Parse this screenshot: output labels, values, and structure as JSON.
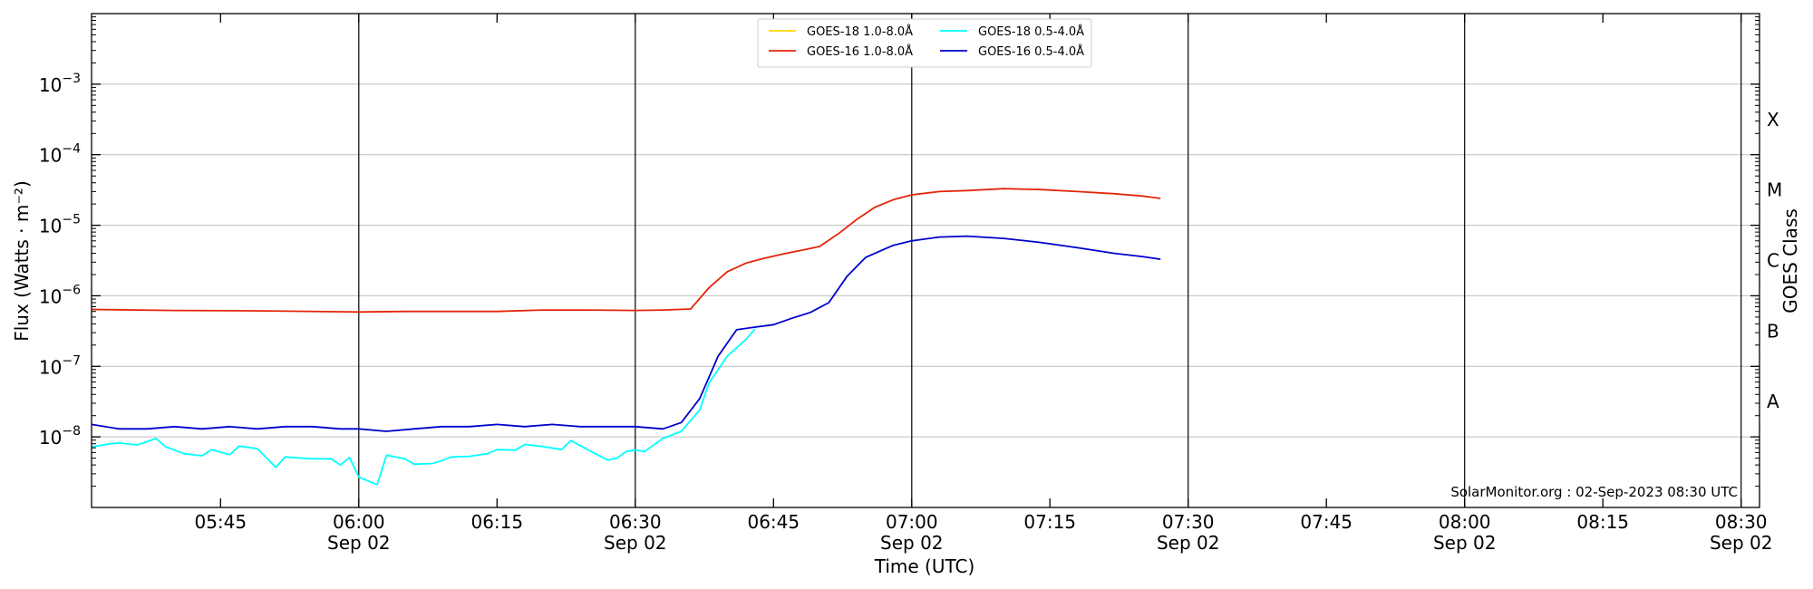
{
  "chart_data": {
    "type": "line",
    "xlabel": "Time (UTC)",
    "ylabel": "Flux (Watts · m⁻²)",
    "y2label": "GOES Class",
    "yscale": "log",
    "ylim": [
      1e-09,
      0.01
    ],
    "xlim": [
      "05:31",
      "08:32"
    ],
    "grid": "horizontal at decades",
    "legend_position": "top-center",
    "watermark": "SolarMonitor.org : 02-Sep-2023 08:30 UTC",
    "x_ticks": [
      {
        "time": "05:45",
        "label": "05:45",
        "date": ""
      },
      {
        "time": "06:00",
        "label": "06:00",
        "date": "Sep 02"
      },
      {
        "time": "06:15",
        "label": "06:15",
        "date": ""
      },
      {
        "time": "06:30",
        "label": "06:30",
        "date": "Sep 02"
      },
      {
        "time": "06:45",
        "label": "06:45",
        "date": ""
      },
      {
        "time": "07:00",
        "label": "07:00",
        "date": "Sep 02"
      },
      {
        "time": "07:15",
        "label": "07:15",
        "date": ""
      },
      {
        "time": "07:30",
        "label": "07:30",
        "date": "Sep 02"
      },
      {
        "time": "07:45",
        "label": "07:45",
        "date": ""
      },
      {
        "time": "08:00",
        "label": "08:00",
        "date": "Sep 02"
      },
      {
        "time": "08:15",
        "label": "08:15",
        "date": ""
      },
      {
        "time": "08:30",
        "label": "08:30",
        "date": "Sep 02"
      }
    ],
    "vertical_lines": [
      "06:00",
      "06:30",
      "07:00",
      "07:30",
      "08:00",
      "08:30"
    ],
    "y_ticks": [
      {
        "value": 1e-08,
        "base": "10",
        "exp": "−8"
      },
      {
        "value": 1e-07,
        "base": "10",
        "exp": "−7"
      },
      {
        "value": 1e-06,
        "base": "10",
        "exp": "−6"
      },
      {
        "value": 1e-05,
        "base": "10",
        "exp": "−5"
      },
      {
        "value": 0.0001,
        "base": "10",
        "exp": "−4"
      },
      {
        "value": 0.001,
        "base": "10",
        "exp": "−3"
      }
    ],
    "goes_classes": [
      {
        "label": "A",
        "value": 3.16e-08
      },
      {
        "label": "B",
        "value": 3.16e-07
      },
      {
        "label": "C",
        "value": 3.16e-06
      },
      {
        "label": "M",
        "value": 3.16e-05
      },
      {
        "label": "X",
        "value": 0.000316
      }
    ],
    "series": [
      {
        "name": "GOES-18 1.0-8.0Å",
        "color": "#ffd700",
        "x": [],
        "y": []
      },
      {
        "name": "GOES-18 0.5-4.0Å",
        "color": "#00ffff",
        "x": [
          "05:31",
          "05:33",
          "05:34",
          "05:36",
          "05:38",
          "05:39",
          "05:41",
          "05:43",
          "05:44",
          "05:46",
          "05:47",
          "05:49",
          "05:51",
          "05:52",
          "05:54",
          "05:55",
          "05:57",
          "05:58",
          "05:59",
          "06:00",
          "06:02",
          "06:03",
          "06:05",
          "06:06",
          "06:08",
          "06:09",
          "06:10",
          "06:12",
          "06:14",
          "06:15",
          "06:17",
          "06:18",
          "06:20",
          "06:22",
          "06:23",
          "06:25",
          "06:27",
          "06:28",
          "06:29",
          "06:30",
          "06:31",
          "06:33",
          "06:35",
          "06:37",
          "06:38",
          "06:40",
          "06:42",
          "06:43"
        ],
        "y": [
          7.2e-09,
          8e-09,
          8.2e-09,
          7.7e-09,
          9.5e-09,
          7.3e-09,
          5.8e-09,
          5.4e-09,
          6.6e-09,
          5.6e-09,
          7.4e-09,
          6.8e-09,
          3.7e-09,
          5.2e-09,
          5e-09,
          4.9e-09,
          4.9e-09,
          4e-09,
          5.1e-09,
          2.7e-09,
          2.1e-09,
          5.5e-09,
          4.9e-09,
          4.1e-09,
          4.2e-09,
          4.6e-09,
          5.2e-09,
          5.3e-09,
          5.8e-09,
          6.6e-09,
          6.5e-09,
          7.8e-09,
          7.3e-09,
          6.6e-09,
          8.9e-09,
          6.4e-09,
          4.7e-09,
          5e-09,
          6.2e-09,
          6.5e-09,
          6.2e-09,
          9.5e-09,
          1.2e-08,
          2.4e-08,
          5.8e-08,
          1.4e-07,
          2.4e-07,
          3.4e-07
        ]
      },
      {
        "name": "GOES-16 1.0-8.0Å",
        "color": "#e3260a",
        "x": [
          "05:31",
          "05:40",
          "05:50",
          "06:00",
          "06:05",
          "06:10",
          "06:15",
          "06:20",
          "06:25",
          "06:30",
          "06:33",
          "06:36",
          "06:38",
          "06:40",
          "06:42",
          "06:44",
          "06:46",
          "06:48",
          "06:50",
          "06:52",
          "06:54",
          "06:56",
          "06:58",
          "07:00",
          "07:03",
          "07:06",
          "07:10",
          "07:14",
          "07:18",
          "07:22",
          "07:25",
          "07:27"
        ],
        "y": [
          6.4e-07,
          6.2e-07,
          6.1e-07,
          5.9e-07,
          6e-07,
          6e-07,
          6e-07,
          6.3e-07,
          6.3e-07,
          6.2e-07,
          6.3e-07,
          6.5e-07,
          1.3e-06,
          2.2e-06,
          2.9e-06,
          3.4e-06,
          3.9e-06,
          4.4e-06,
          5e-06,
          7.5e-06,
          1.2e-05,
          1.8e-05,
          2.3e-05,
          2.7e-05,
          3e-05,
          3.1e-05,
          3.3e-05,
          3.2e-05,
          3e-05,
          2.8e-05,
          2.6e-05,
          2.4e-05
        ]
      },
      {
        "name": "GOES-16 0.5-4.0Å",
        "color": "#0000cd",
        "x": [
          "05:31",
          "05:34",
          "05:37",
          "05:40",
          "05:43",
          "05:46",
          "05:49",
          "05:52",
          "05:55",
          "05:58",
          "06:00",
          "06:03",
          "06:06",
          "06:09",
          "06:12",
          "06:15",
          "06:18",
          "06:21",
          "06:24",
          "06:27",
          "06:30",
          "06:33",
          "06:35",
          "06:37",
          "06:39",
          "06:41",
          "06:43",
          "06:45",
          "06:47",
          "06:49",
          "06:51",
          "06:53",
          "06:55",
          "06:58",
          "07:00",
          "07:03",
          "07:06",
          "07:10",
          "07:14",
          "07:18",
          "07:22",
          "07:25",
          "07:27"
        ],
        "y": [
          1.5e-08,
          1.3e-08,
          1.3e-08,
          1.4e-08,
          1.3e-08,
          1.4e-08,
          1.3e-08,
          1.4e-08,
          1.4e-08,
          1.3e-08,
          1.3e-08,
          1.2e-08,
          1.3e-08,
          1.4e-08,
          1.4e-08,
          1.5e-08,
          1.4e-08,
          1.5e-08,
          1.4e-08,
          1.4e-08,
          1.4e-08,
          1.3e-08,
          1.6e-08,
          3.5e-08,
          1.4e-07,
          3.3e-07,
          3.6e-07,
          3.9e-07,
          4.8e-07,
          5.8e-07,
          8e-07,
          1.9e-06,
          3.5e-06,
          5.2e-06,
          6e-06,
          6.8e-06,
          7e-06,
          6.5e-06,
          5.7e-06,
          4.8e-06,
          4e-06,
          3.6e-06,
          3.3e-06
        ]
      }
    ]
  }
}
